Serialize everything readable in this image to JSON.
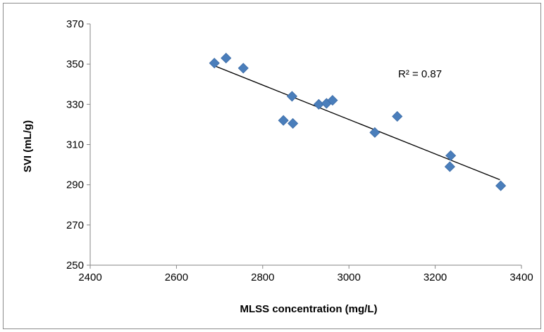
{
  "chart_data": {
    "type": "scatter",
    "title": "",
    "xlabel": "MLSS concentration (mg/L)",
    "ylabel": "SVI (mL/g)",
    "xlim": [
      2400,
      3400
    ],
    "ylim": [
      250,
      370
    ],
    "xticks": [
      2400,
      2600,
      2800,
      3000,
      3200,
      3400
    ],
    "yticks": [
      250,
      270,
      290,
      310,
      330,
      350,
      370
    ],
    "grid": false,
    "legend": "none",
    "marker": "diamond",
    "marker_color": "#4a7ebb",
    "trendline": {
      "type": "linear",
      "x": [
        2690,
        3350
      ],
      "y": [
        349.0,
        292.5
      ],
      "color": "#000000",
      "r2_label": "R² = 0.87"
    },
    "series": [
      {
        "points": [
          {
            "x": 2688,
            "y": 350.5
          },
          {
            "x": 2715,
            "y": 353.0
          },
          {
            "x": 2755,
            "y": 348.0
          },
          {
            "x": 2848,
            "y": 322.0
          },
          {
            "x": 2868,
            "y": 334.0
          },
          {
            "x": 2870,
            "y": 320.5
          },
          {
            "x": 2930,
            "y": 330.0
          },
          {
            "x": 2948,
            "y": 330.5
          },
          {
            "x": 2962,
            "y": 332.0
          },
          {
            "x": 3060,
            "y": 316.0
          },
          {
            "x": 3112,
            "y": 324.0
          },
          {
            "x": 3234,
            "y": 299.0
          },
          {
            "x": 3236,
            "y": 304.5
          },
          {
            "x": 3352,
            "y": 289.5
          }
        ]
      }
    ]
  }
}
